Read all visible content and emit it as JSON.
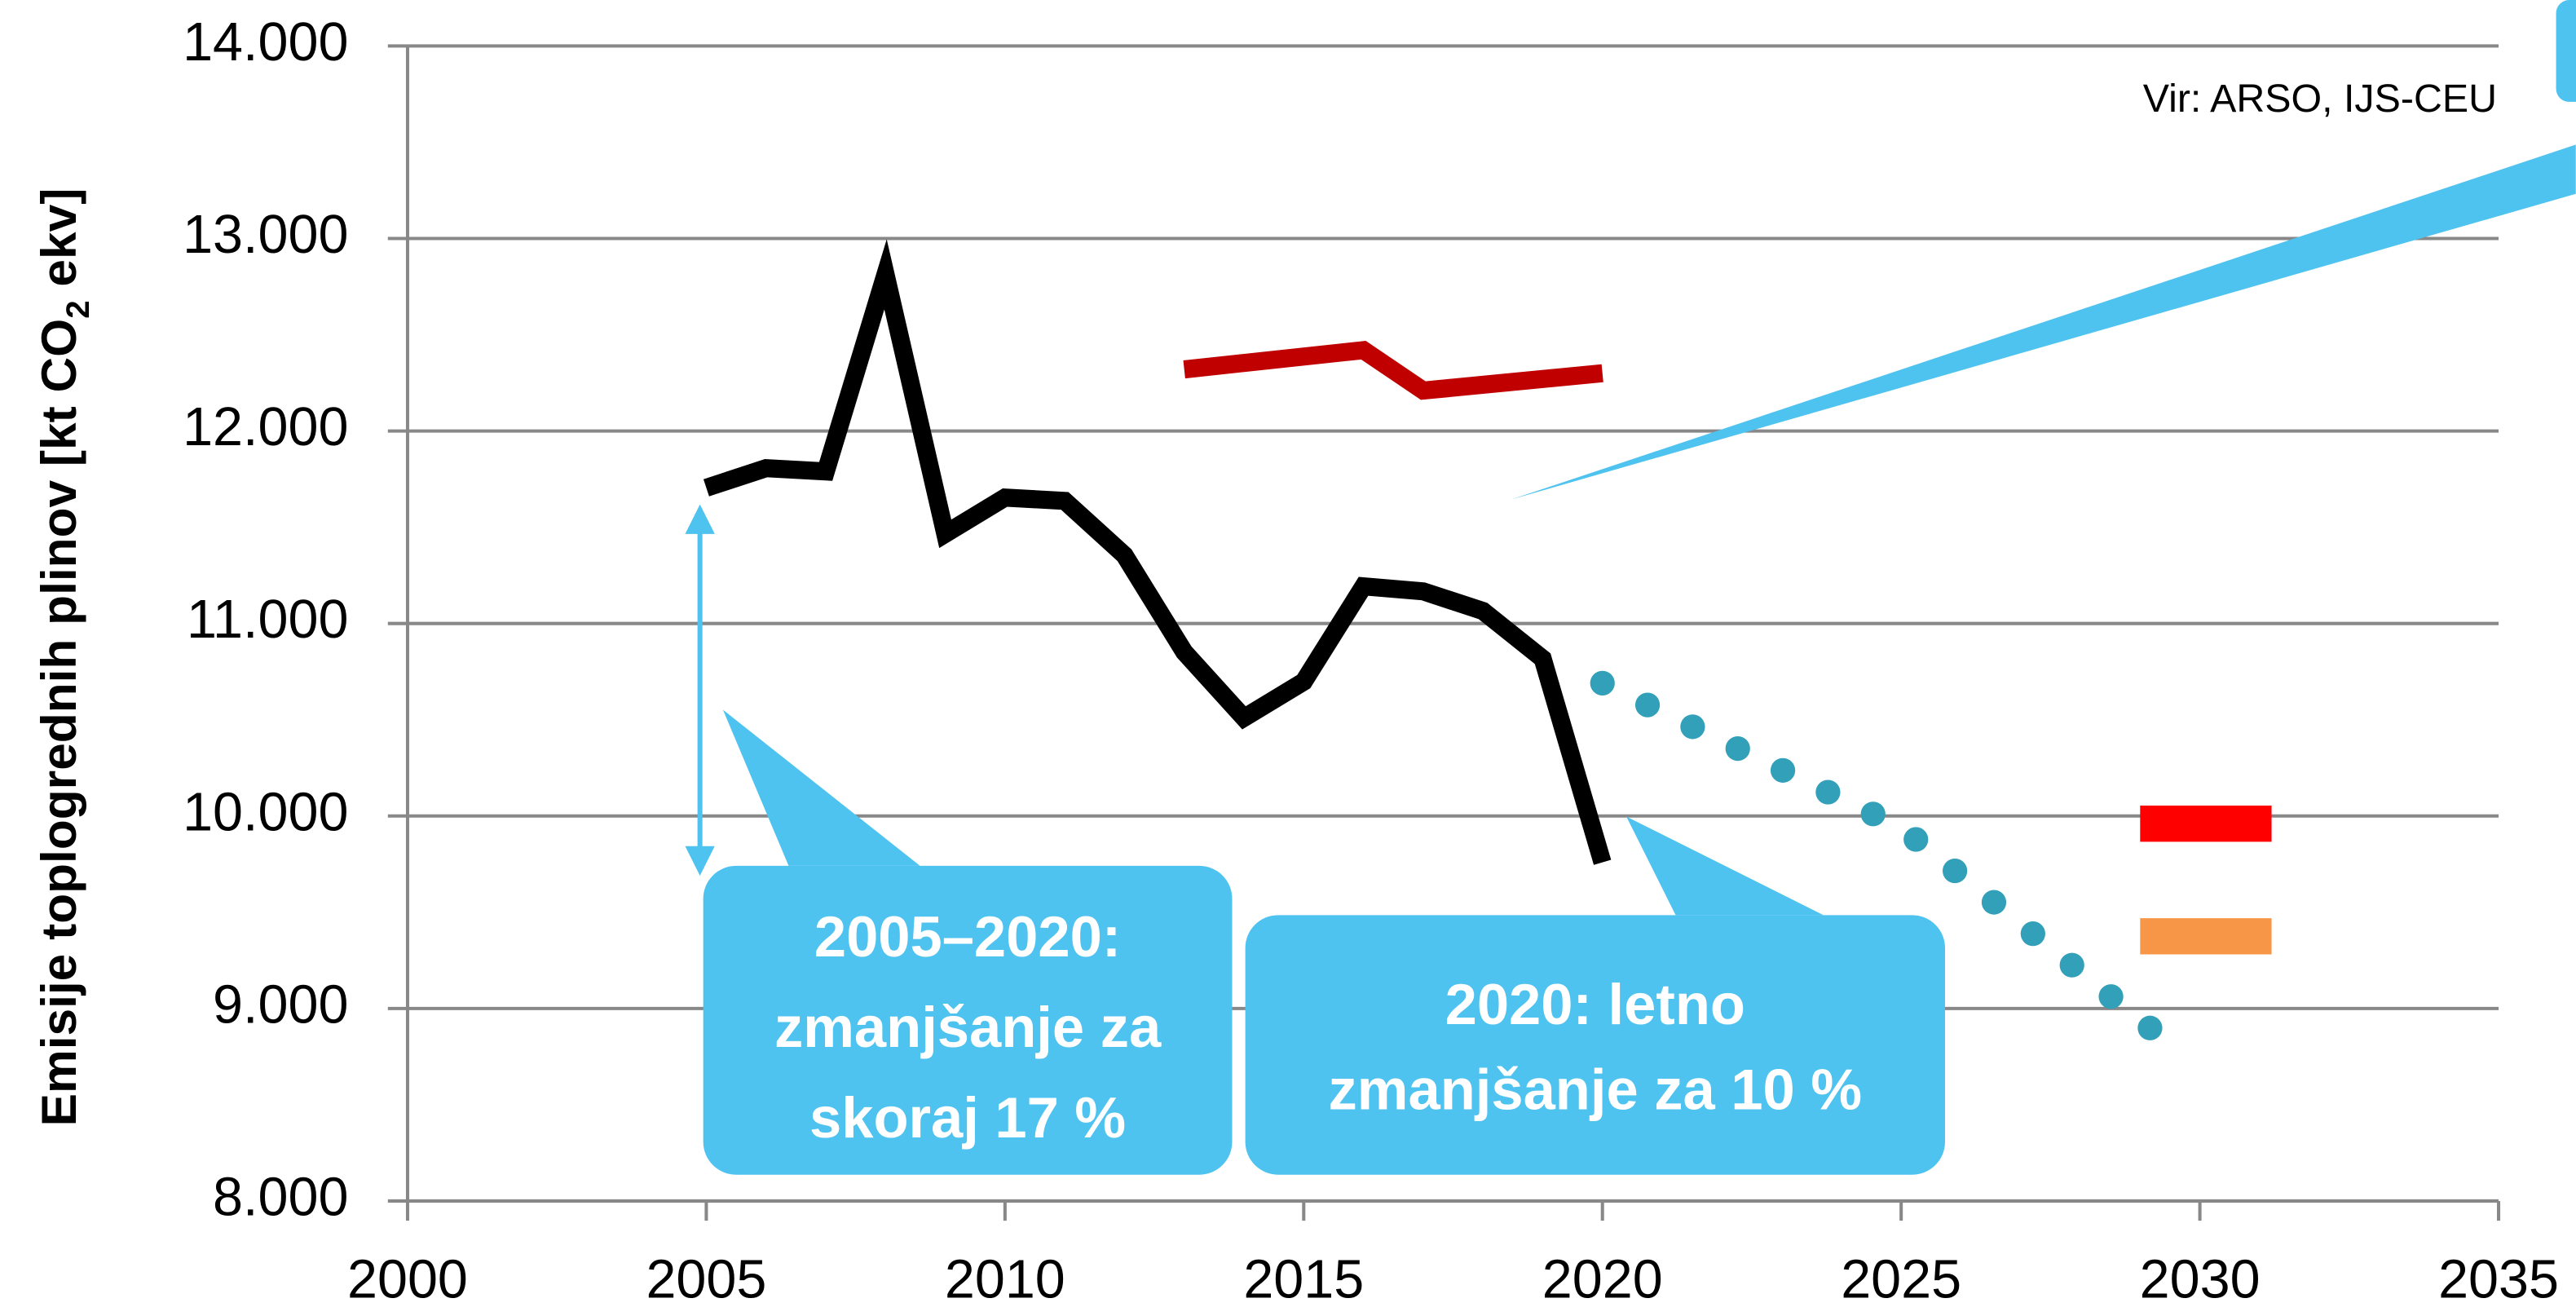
{
  "chart_data": {
    "type": "line",
    "source": "Vir: ARSO, IJS-CEU",
    "y_label_parts": [
      "Emisije toplogrednih plinov [kt CO",
      "2",
      " ekv]"
    ],
    "xlim": [
      2000,
      2035
    ],
    "xticks": [
      2000,
      2005,
      2010,
      2015,
      2020,
      2025,
      2030,
      2035
    ],
    "ylim": [
      8000,
      14000
    ],
    "yticks": [
      {
        "value": 8000,
        "label": "8.000"
      },
      {
        "value": 9000,
        "label": "9.000"
      },
      {
        "value": 10000,
        "label": "10.000"
      },
      {
        "value": 11000,
        "label": "11.000"
      },
      {
        "value": 12000,
        "label": "12.000"
      },
      {
        "value": 13000,
        "label": "13.000"
      },
      {
        "value": 14000,
        "label": "14.000"
      }
    ],
    "grid": true,
    "series": [
      {
        "color": "#000000",
        "style": "solid",
        "x": [
          2005,
          2006,
          2007,
          2008,
          2009,
          2010,
          2011,
          2012,
          2013,
          2014,
          2015,
          2016,
          2017,
          2018,
          2019,
          2020
        ],
        "values": [
          11705,
          11807,
          11790,
          12814,
          11466,
          11654,
          11637,
          11355,
          10852,
          10510,
          10698,
          11193,
          11167,
          11065,
          10817,
          9759
        ]
      },
      {
        "color": "#c00000",
        "style": "solid",
        "x": [
          2013,
          2016,
          2017,
          2020
        ],
        "values": [
          12320,
          12420,
          12210,
          12300
        ]
      },
      {
        "color": "#31a0b8",
        "style": "dotted",
        "x": [
          2020,
          2025,
          2029.4
        ],
        "values": [
          10690,
          9940,
          8840
        ]
      },
      {
        "color": "#ff0000",
        "style": "bar",
        "x": [
          2029,
          2031.2
        ],
        "values": [
          9960,
          9960
        ]
      },
      {
        "color": "#f79646",
        "style": "bar",
        "x": [
          2029,
          2031.2
        ],
        "values": [
          9375,
          9375
        ]
      }
    ],
    "annotations": [
      {
        "lines": [
          "2005–2020:",
          "zmanjšanje za",
          "skoraj 17 %"
        ]
      },
      {
        "lines": [
          "2020: letno",
          "zmanjšanje za 10 %"
        ]
      }
    ]
  }
}
